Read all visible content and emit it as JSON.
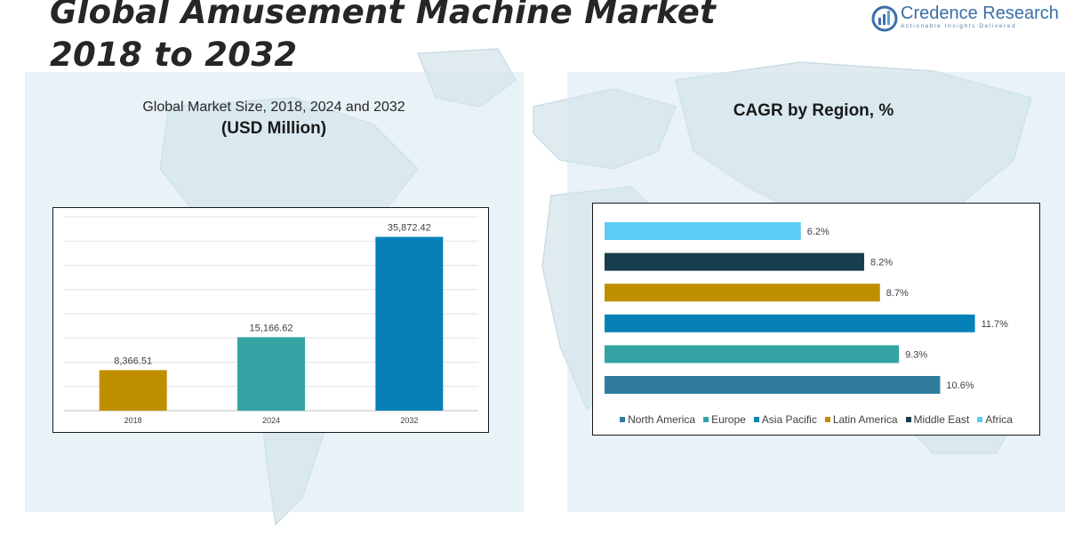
{
  "header": {
    "title_line1": "Global Amusement Machine Market",
    "title_line2": "2018 to 2032"
  },
  "logo": {
    "name": "Credence Research",
    "tagline": "Actionable Insights Delivered"
  },
  "chart_data": [
    {
      "type": "bar",
      "title": "Global Market Size, 2018, 2024 and 2032",
      "subtitle": "(USD Million)",
      "categories": [
        "2018",
        "2024",
        "2032"
      ],
      "values": [
        8366.51,
        15166.62,
        35872.42
      ],
      "data_labels": [
        "8,366.51",
        "15,166.62",
        "35,872.42"
      ],
      "colors": [
        "#bf8f00",
        "#33a3a3",
        "#0581b8"
      ],
      "ylim": [
        0,
        40000
      ],
      "grid": true,
      "xlabel": "",
      "ylabel": ""
    },
    {
      "type": "bar",
      "orientation": "horizontal",
      "title": "CAGR by Region, %",
      "categories": [
        "Africa",
        "Middle East",
        "Latin America",
        "Asia Pacific",
        "Europe",
        "North America"
      ],
      "values": [
        6.2,
        8.2,
        8.7,
        11.7,
        9.3,
        10.6
      ],
      "data_labels": [
        "6.2%",
        "8.2%",
        "8.7%",
        "11.7%",
        "9.3%",
        "10.6%"
      ],
      "colors": [
        "#5bcdf4",
        "#183d4c",
        "#bf8f00",
        "#0581b8",
        "#33a3a3",
        "#2f7c9e"
      ],
      "xlim": [
        0,
        13.2
      ],
      "legend": [
        "North America",
        "Europe",
        "Asia Pacific",
        "Latin America",
        "Middle East",
        "Africa"
      ],
      "legend_colors": [
        "#2f7c9e",
        "#33a3a3",
        "#0581b8",
        "#bf8f00",
        "#183d4c",
        "#5bcdf4"
      ],
      "legend_position": "bottom"
    }
  ]
}
